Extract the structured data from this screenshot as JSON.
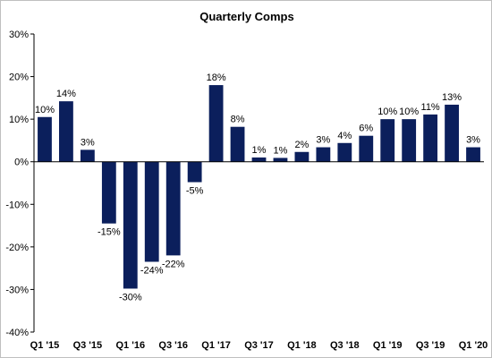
{
  "chart_data": {
    "type": "bar",
    "title": "Quarterly Comps",
    "xlabel": "",
    "ylabel": "",
    "ylim": [
      -40,
      30
    ],
    "yticks": [
      30,
      20,
      10,
      0,
      -10,
      -20,
      -30,
      -40
    ],
    "ytick_labels": [
      "30%",
      "20%",
      "10%",
      "0%",
      "-10%",
      "-20%",
      "-30%",
      "-40%"
    ],
    "categories": [
      "Q1 '15",
      "Q2 '15",
      "Q3 '15",
      "Q4 '15",
      "Q1 '16",
      "Q2 '16",
      "Q3 '16",
      "Q4 '16",
      "Q1 '17",
      "Q2 '17",
      "Q3 '17",
      "Q4 '17",
      "Q1 '18",
      "Q2 '18",
      "Q3 '18",
      "Q4 '18",
      "Q1 '19",
      "Q2 '19",
      "Q3 '19",
      "Q4 '19",
      "Q1 '20"
    ],
    "xtick_labels": [
      "Q1 '15",
      "",
      "Q3 '15",
      "",
      "Q1 '16",
      "",
      "Q3 '16",
      "",
      "Q1 '17",
      "",
      "Q3 '17",
      "",
      "Q1 '18",
      "",
      "Q3 '18",
      "",
      "Q1 '19",
      "",
      "Q3 '19",
      "",
      "Q1 '20"
    ],
    "values": [
      10.5,
      14.2,
      2.8,
      -14.5,
      -29.8,
      -23.5,
      -22.0,
      -4.8,
      18.0,
      8.2,
      1.0,
      0.9,
      2.3,
      3.4,
      4.4,
      6.1,
      10.0,
      10.0,
      11.1,
      13.4,
      3.4
    ],
    "data_labels": [
      "10%",
      "14%",
      "3%",
      "-15%",
      "-30%",
      "-24%",
      "-22%",
      "-5%",
      "18%",
      "8%",
      "1%",
      "1%",
      "2%",
      "3%",
      "4%",
      "6%",
      "10%",
      "10%",
      "11%",
      "13%",
      "3%"
    ],
    "grid": false,
    "legend": "none",
    "colors": {
      "bar": "#0b1f5c",
      "axis": "#000000",
      "frame": "#bfbfbf"
    }
  }
}
